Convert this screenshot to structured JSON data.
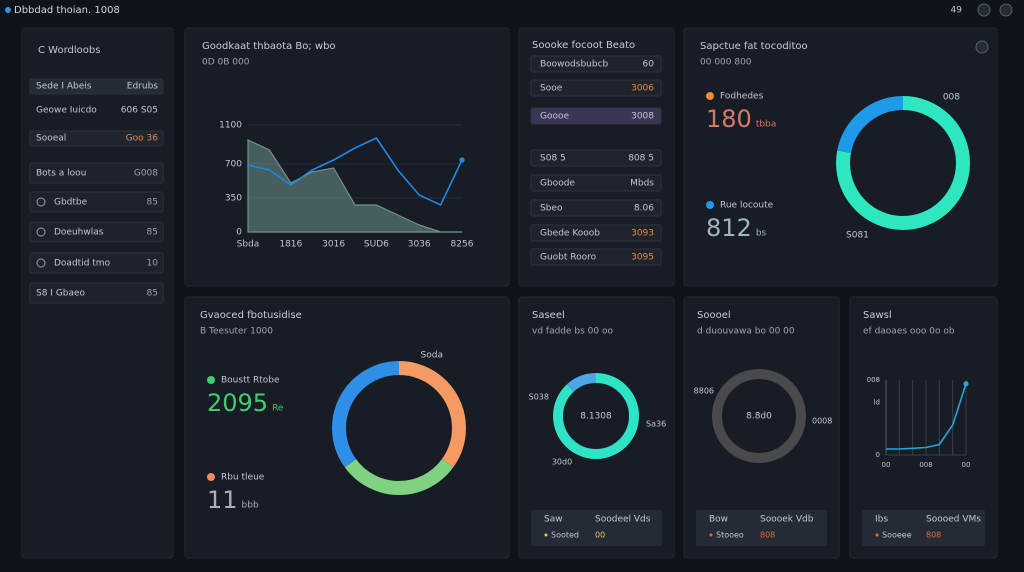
{
  "header": {
    "title": "Dbbdad thoian. 1008",
    "badge": "49"
  },
  "sidebar": {
    "title": "C  Wordloobs",
    "items": [
      {
        "label": "Sede I Abeis",
        "value": "Edrubs"
      },
      {
        "label": "Geowe Iuicdo",
        "value": "606 S05"
      },
      {
        "label": "Sooeal",
        "value": "Goo 36"
      },
      {
        "label": "Bots a loou",
        "value": "G008"
      },
      {
        "label": "Gbdtbe",
        "value": "85"
      },
      {
        "label": "Doeuhwlas",
        "value": "85"
      },
      {
        "label": "Doadtid tmo",
        "value": "10"
      },
      {
        "label": "S8 I Gbaeo",
        "value": "85"
      }
    ]
  },
  "line_panel": {
    "title": "Goodkaat thbaota Bo; wbo",
    "subtitle": "0D  0B  000",
    "chart_data": {
      "type": "line",
      "categories": [
        "Sbda",
        null,
        "1816",
        null,
        "3016",
        null,
        "SUD6",
        null,
        "3036",
        null,
        "8256"
      ],
      "ylim": [
        0,
        1100
      ],
      "yticks": [
        0,
        350,
        700,
        1100
      ],
      "grid": "horizontal",
      "series": [
        {
          "color": "#6f938f",
          "fill": true,
          "values": [
            946,
            843,
            504,
            617,
            658,
            278,
            278,
            175,
            72,
            0,
            0
          ]
        },
        {
          "color": "#1e88e5",
          "fill": false,
          "values": [
            689,
            637,
            483,
            637,
            740,
            864,
            966,
            637,
            380,
            278,
            740
          ]
        }
      ]
    }
  },
  "list_panel": {
    "title": "Soooke focoot Beato",
    "rows": [
      {
        "label": "Boowodsbubcb",
        "value": "60"
      },
      {
        "label": "Sooe",
        "value": "3006"
      },
      {
        "label": "Goooe",
        "value": "3008"
      },
      {
        "label": "S08 5",
        "value": "808 5"
      },
      {
        "label": "Gboode",
        "value": "Mbds"
      },
      {
        "label": "Sbeo",
        "value": "8.06"
      },
      {
        "label": "Gbede Kooob",
        "value": "3093"
      },
      {
        "label": "Guobt Rooro",
        "value": "3095"
      }
    ]
  },
  "ring_panel": {
    "title": "Sapctue fat tocoditoo",
    "subtitle": "00  000  800",
    "legend": [
      {
        "label": "Fodhedes",
        "color": "#f08a3c",
        "value": "180",
        "value_color": "#d9786a",
        "unit": "tbba"
      },
      {
        "label": "Rue locoute",
        "color": "#2196f3",
        "value": "812",
        "value_color": "#9fb4c2",
        "unit": "bs"
      }
    ],
    "chart_data": {
      "type": "donut",
      "values": [
        78,
        22
      ],
      "colors": [
        "#2ee6c0",
        "#1e9be8"
      ],
      "annotations": [
        "008",
        "S081"
      ]
    }
  },
  "breakdown_panel": {
    "title": "Gvaoced fbotusidise",
    "subtitle": "B  Teesuter 1000",
    "legend": [
      {
        "label": "Boustt Rtobe",
        "color": "#3ecf6e",
        "value": "2095",
        "value_color": "#3ecf6e",
        "unit": "Re"
      },
      {
        "label": "Rbu tleue",
        "color": "#f0875e",
        "value": "11",
        "value_color": "#aab0b8",
        "unit": "bbb"
      }
    ],
    "chart_data": {
      "type": "donut",
      "values": [
        35,
        30,
        35
      ],
      "colors": [
        "#f59a62",
        "#7fd27f",
        "#2f8fe6"
      ],
      "annotations": [
        "Soda"
      ]
    }
  },
  "small_panels": [
    {
      "title": "Saseel",
      "subtitle": "vd fadde bs  00  oo",
      "chart_data": {
        "type": "donut",
        "values": [
          88,
          12
        ],
        "colors": [
          "#2fe3c6",
          "#4aa8e8"
        ],
        "center": "8.1308",
        "annotations": [
          "S038",
          "Sa36",
          "30d0"
        ]
      },
      "footer": {
        "headers": [
          "Saw",
          "Soodeel Vds"
        ],
        "row": [
          "Sooted",
          "00"
        ],
        "row_color": "#e8c24a"
      }
    },
    {
      "title": "Soooel",
      "subtitle": "d duouvawa bo  00  00",
      "chart_data": {
        "type": "donut",
        "values": [
          100
        ],
        "colors": [
          "#4a4a4c"
        ],
        "center": "8.8d0",
        "annotations": [
          "8806",
          "0008"
        ]
      },
      "footer": {
        "headers": [
          "Bow",
          "Soooek Vdb"
        ],
        "row": [
          "Stooeo",
          "808"
        ],
        "row_color": "#e8673c"
      }
    },
    {
      "title": "Sawsl",
      "subtitle": "ef daoaes ooo  0o  ob",
      "chart_data": {
        "type": "line",
        "categories": [
          "00",
          null,
          null,
          "008",
          null,
          null,
          "00"
        ],
        "ylim": [
          0,
          100
        ],
        "yticks": [
          0,
          {
            "value": 70,
            "label": "ld"
          },
          {
            "value": 100,
            "label": "008"
          }
        ],
        "grid": "vertical",
        "series": [
          {
            "color": "#1fa8d8",
            "fill": false,
            "values": [
              8,
              8,
              9,
              10,
              14,
              40,
              95
            ]
          }
        ]
      },
      "footer": {
        "headers": [
          "Ibs",
          "Soooed VMs"
        ],
        "row": [
          "Sooeee",
          "808"
        ],
        "row_color": "#e8673c"
      }
    }
  ]
}
